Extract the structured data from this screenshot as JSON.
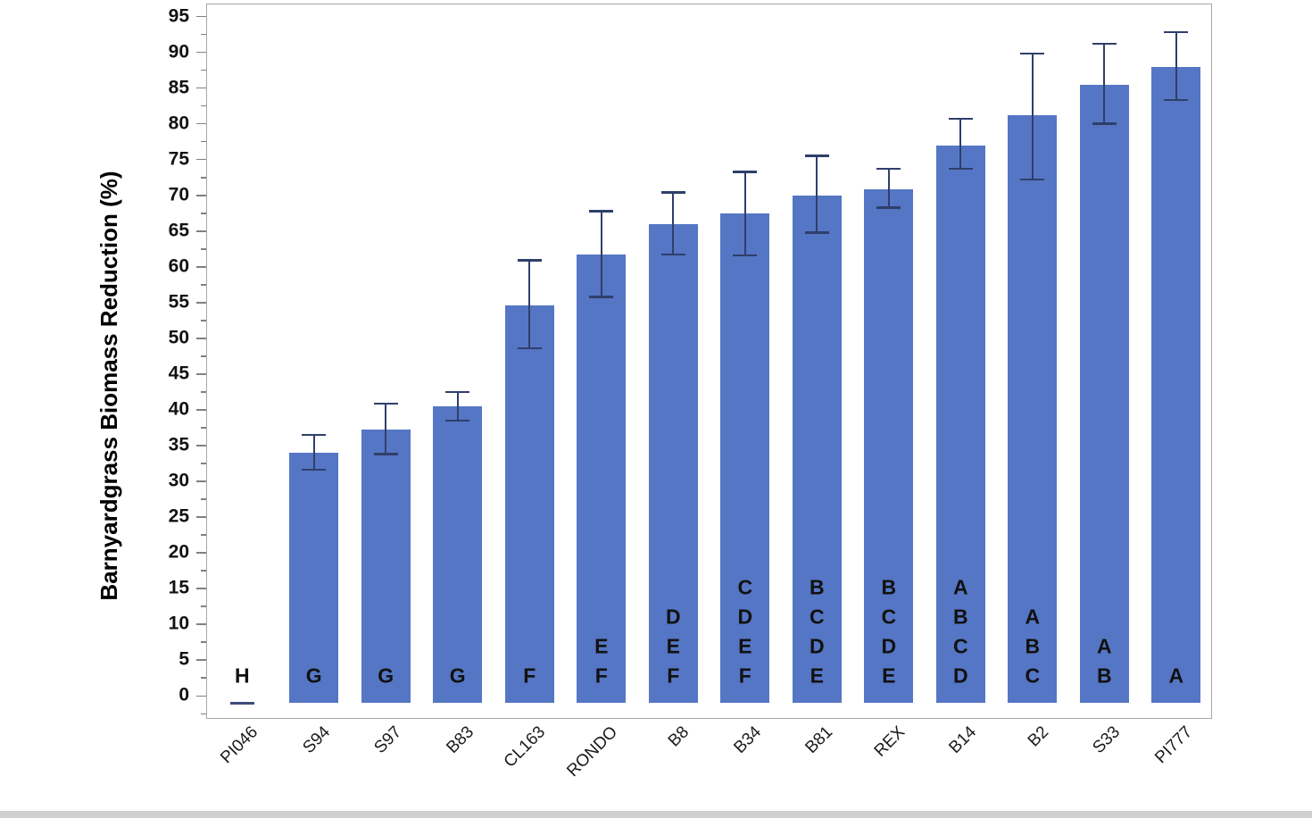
{
  "window": {
    "bottom_strip_color": "#d0d0d0"
  },
  "chart_data": {
    "type": "bar",
    "title": "",
    "xlabel": "",
    "ylabel": "Barnyardgrass Biomass Reduction (%)",
    "ylim": [
      -3.2,
      96.8
    ],
    "ytick_min": 0,
    "ytick_max": 95,
    "ytick_major_step": 5,
    "ytick_minor_step": 2.5,
    "grid": false,
    "legend": null,
    "bar_color": "#5576c4",
    "error_bar_color": "#2f3f6b",
    "collapsed_bar_color": "#3d4d7a",
    "categories": [
      "PI046",
      "S94",
      "S97",
      "B83",
      "CL163",
      "RONDO",
      "B8",
      "B34",
      "B81",
      "REX",
      "B14",
      "B2",
      "S33",
      "PI777"
    ],
    "bars": [
      {
        "label": "PI046",
        "value": -1.0,
        "error_plus": 0,
        "error_minus": 0,
        "letters": [
          "H"
        ],
        "collapsed": true
      },
      {
        "label": "S94",
        "value": 34.0,
        "error_plus": 2.5,
        "error_minus": 2.4,
        "letters": [
          "G"
        ]
      },
      {
        "label": "S97",
        "value": 37.3,
        "error_plus": 3.6,
        "error_minus": 3.5,
        "letters": [
          "G"
        ]
      },
      {
        "label": "B83",
        "value": 40.5,
        "error_plus": 2.0,
        "error_minus": 2.0,
        "letters": [
          "G"
        ]
      },
      {
        "label": "CL163",
        "value": 54.6,
        "error_plus": 6.3,
        "error_minus": 6.0,
        "letters": [
          "F"
        ]
      },
      {
        "label": "RONDO",
        "value": 61.7,
        "error_plus": 6.1,
        "error_minus": 5.9,
        "letters": [
          "E",
          "F"
        ]
      },
      {
        "label": "B8",
        "value": 66.0,
        "error_plus": 4.4,
        "error_minus": 4.3,
        "letters": [
          "D",
          "E",
          "F"
        ]
      },
      {
        "label": "B34",
        "value": 67.5,
        "error_plus": 5.8,
        "error_minus": 5.9,
        "letters": [
          "C",
          "D",
          "E",
          "F"
        ]
      },
      {
        "label": "B81",
        "value": 70.0,
        "error_plus": 5.5,
        "error_minus": 5.2,
        "letters": [
          "B",
          "C",
          "D",
          "E"
        ]
      },
      {
        "label": "REX",
        "value": 70.9,
        "error_plus": 2.8,
        "error_minus": 2.6,
        "letters": [
          "B",
          "C",
          "D",
          "E"
        ]
      },
      {
        "label": "B14",
        "value": 77.0,
        "error_plus": 3.7,
        "error_minus": 3.3,
        "letters": [
          "A",
          "B",
          "C",
          "D"
        ]
      },
      {
        "label": "B2",
        "value": 81.2,
        "error_plus": 8.6,
        "error_minus": 9.0,
        "letters": [
          "A",
          "B",
          "C"
        ]
      },
      {
        "label": "S33",
        "value": 85.5,
        "error_plus": 5.7,
        "error_minus": 5.5,
        "letters": [
          "A",
          "B"
        ]
      },
      {
        "label": "PI777",
        "value": 88.0,
        "error_plus": 4.8,
        "error_minus": 4.7,
        "letters": [
          "A"
        ]
      }
    ]
  }
}
